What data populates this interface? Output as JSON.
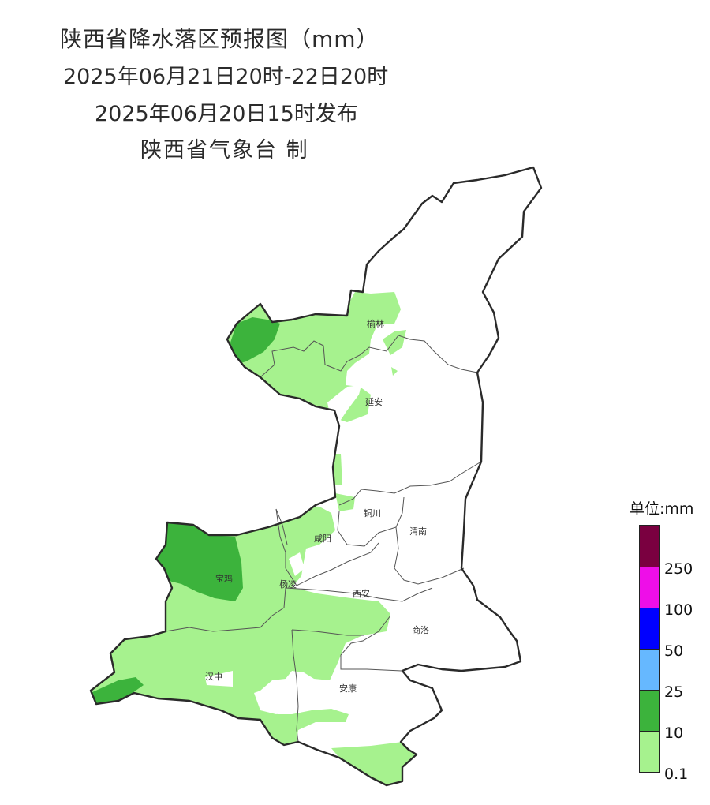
{
  "title": {
    "line1": "陕西省降水落区预报图（mm）",
    "line2": "2025年06月21日20时-22日20时",
    "line3": "2025年06月20日15时发布",
    "line4": "陕西省气象台 制"
  },
  "cities": [
    {
      "id": "yulin",
      "name": "榆林"
    },
    {
      "id": "yanan",
      "name": "延安"
    },
    {
      "id": "tongchuan",
      "name": "铜川"
    },
    {
      "id": "xianyang",
      "name": "咸阳"
    },
    {
      "id": "weinan",
      "name": "渭南"
    },
    {
      "id": "baoji",
      "name": "宝鸡"
    },
    {
      "id": "yangling",
      "name": "杨凌"
    },
    {
      "id": "xian",
      "name": "西安"
    },
    {
      "id": "shangluo",
      "name": "商洛"
    },
    {
      "id": "hanzhong",
      "name": "汉中"
    },
    {
      "id": "ankang",
      "name": "安康"
    }
  ],
  "legend": {
    "title": "单位:mm",
    "bins": [
      {
        "color": "#7a0040"
      },
      {
        "color": "#ee0ee8"
      },
      {
        "color": "#0000ff"
      },
      {
        "color": "#66b8ff"
      },
      {
        "color": "#3cb33c"
      },
      {
        "color": "#a6f28e"
      }
    ],
    "ticks": [
      "250",
      "100",
      "50",
      "25",
      "10",
      "0.1"
    ]
  }
}
